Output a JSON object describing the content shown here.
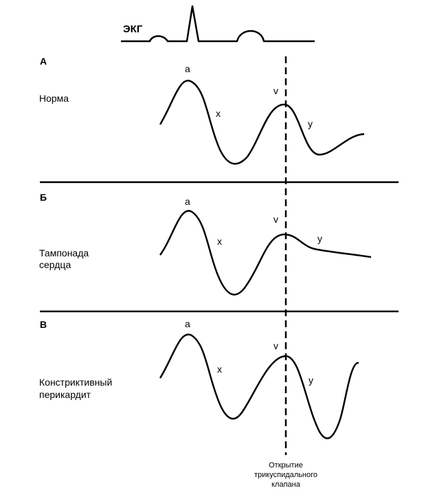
{
  "ecg_label": "ЭКГ",
  "panels": [
    {
      "letter": "А",
      "title_lines": [
        "Норма"
      ],
      "wave_letters": {
        "a": "a",
        "x": "x",
        "v": "v",
        "y": "y"
      }
    },
    {
      "letter": "Б",
      "title_lines": [
        "Тампонада",
        "сердца"
      ],
      "wave_letters": {
        "a": "a",
        "x": "x",
        "v": "v",
        "y": "y"
      }
    },
    {
      "letter": "В",
      "title_lines": [
        "Констриктивный",
        "перикардит"
      ],
      "wave_letters": {
        "a": "a",
        "x": "x",
        "v": "v",
        "y": "y"
      }
    }
  ],
  "marker_caption_lines": [
    "Открытие",
    "трикуспидального",
    "клапана"
  ],
  "colors": {
    "ink": "#000000",
    "background": "#ffffff"
  }
}
